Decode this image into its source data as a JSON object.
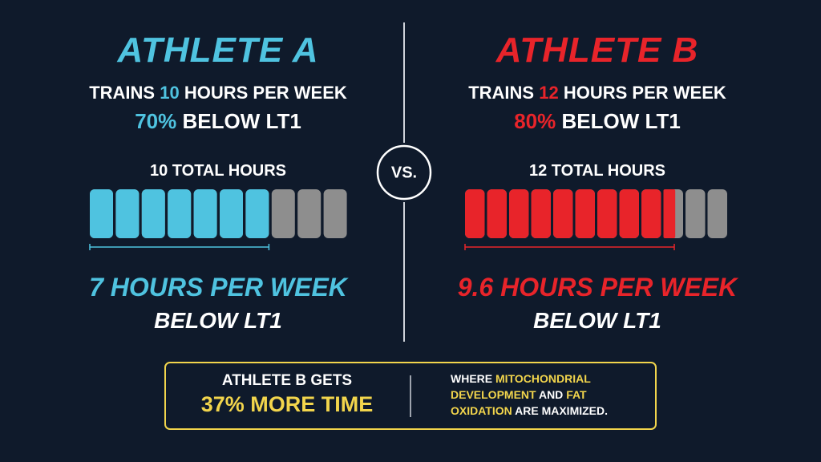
{
  "vs": "VS.",
  "rest_color": "#8e8e8e",
  "athletes": [
    {
      "name": "ATHLETE A",
      "color": "#4fc3e0",
      "trains": "TRAINS",
      "total_hours": 10,
      "per_week": "HOURS PER WEEK",
      "below_percent": "70%",
      "below_lt1": "BELOW LT1",
      "total_label": "TOTAL HOURS",
      "below_hours": 7,
      "result": "HOURS PER WEEK",
      "result_sub": "BELOW LT1"
    },
    {
      "name": "ATHLETE B",
      "color": "#e8242a",
      "trains": "TRAINS",
      "total_hours": 12,
      "per_week": "HOURS PER WEEK",
      "below_percent": "80%",
      "below_lt1": "BELOW LT1",
      "total_label": "TOTAL HOURS",
      "below_hours": 9.6,
      "result": "HOURS PER WEEK",
      "result_sub": "BELOW LT1"
    }
  ],
  "callout": {
    "lead": "ATHLETE B GETS",
    "highlight": "37% MORE TIME",
    "highlight_color": "#f2d54c",
    "detail": [
      [
        {
          "text": "WHERE"
        },
        {
          "text": "MITOCHONDRIAL",
          "highlight": true
        }
      ],
      [
        {
          "text": "DEVELOPMENT",
          "highlight": true
        },
        {
          "text": "AND"
        },
        {
          "text": "FAT",
          "highlight": true
        }
      ],
      [
        {
          "text": "OXIDATION",
          "highlight": true
        },
        {
          "text": "ARE MAXIMIZED."
        }
      ]
    ]
  }
}
